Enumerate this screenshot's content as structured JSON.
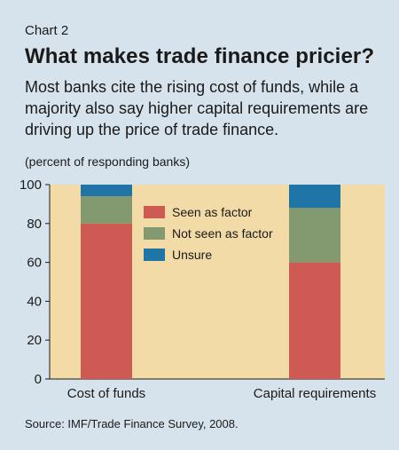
{
  "header": {
    "chart_label": "Chart 2",
    "title": "What makes trade finance pricier?",
    "subtitle": "Most banks cite the rising cost of funds, while a majority also say higher capital requirements are driving up the price of trade finance.",
    "unit_note": "(percent of responding banks)"
  },
  "footer": {
    "source": "Source: IMF/Trade Finance Survey, 2008."
  },
  "colors": {
    "background": "#d7e3ec",
    "plot_area": "#f2dba7",
    "seen": "#cd5a53",
    "not_seen": "#83996f",
    "unsure": "#1f76a6"
  },
  "chart_data": {
    "type": "bar",
    "stacked": true,
    "categories": [
      "Cost of funds",
      "Capital requirements"
    ],
    "series": [
      {
        "name": "Seen as factor",
        "values": [
          80,
          60
        ]
      },
      {
        "name": "Not seen as factor",
        "values": [
          14,
          28
        ]
      },
      {
        "name": "Unsure",
        "values": [
          6,
          12
        ]
      }
    ],
    "ylim": [
      0,
      100
    ],
    "yticks": [
      0,
      20,
      40,
      60,
      80,
      100
    ],
    "grid": false,
    "legend_position": "top-center"
  }
}
